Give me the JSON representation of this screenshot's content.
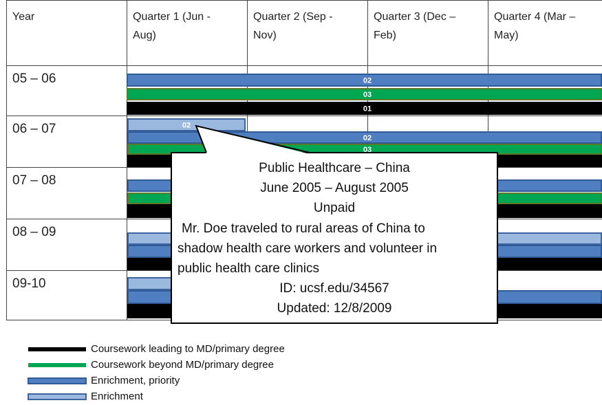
{
  "table": {
    "header": [
      "Year",
      "Quarter 1 (Jun -",
      "Aug)",
      "Quarter 2 (Sep -",
      "Nov)",
      "Quarter 3 (Dec –",
      "Feb)",
      "Quarter 4 (Mar –",
      "May)"
    ],
    "rows": [
      {
        "year": "05 – 06",
        "bar_labels": [
          "02",
          "03",
          "01"
        ]
      },
      {
        "year": "06 – 07",
        "bar_labels": [
          "02",
          "02",
          "03"
        ]
      },
      {
        "year": "07 – 08"
      },
      {
        "year": "08 – 09"
      },
      {
        "year": "09-10"
      }
    ]
  },
  "tooltip": {
    "title": "Public Healthcare – China",
    "dates": "June 2005 – August 2005",
    "pay": "Unpaid",
    "description": [
      "Mr. Doe traveled to rural areas of China to",
      "shadow health care workers and volunteer in",
      "public health care clinics"
    ],
    "id": "ID: ucsf.edu/34567",
    "updated": "Updated: 12/8/2009"
  },
  "legend": [
    "Coursework leading to MD/primary degree",
    "Coursework beyond MD/primary degree",
    "Enrichment, priority",
    "Enrichment"
  ]
}
